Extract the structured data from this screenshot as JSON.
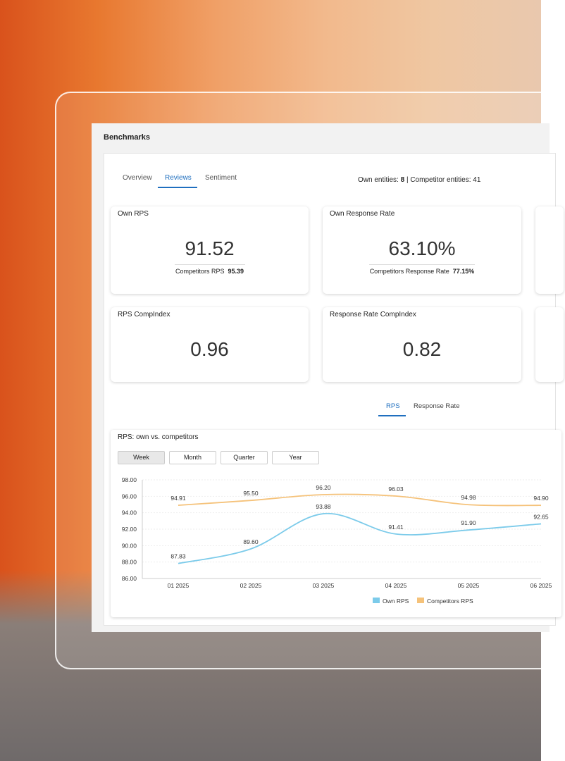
{
  "header": {
    "title": "Benchmarks"
  },
  "tabs": [
    "Overview",
    "Reviews",
    "Sentiment"
  ],
  "entities": {
    "own_label": "Own entities:",
    "own_value": "8",
    "separator": "|",
    "competitor_label": "Competitor entities:",
    "competitor_value": "41"
  },
  "cards": [
    {
      "title": "Own RPS",
      "value": "91.52",
      "sub_label": "Competitors RPS",
      "sub_value": "95.39"
    },
    {
      "title": "Own Response Rate",
      "value": "63.10%",
      "sub_label": "Competitors Response Rate",
      "sub_value": "77.15%"
    },
    {
      "title": "RPS CompIndex",
      "value": "0.96"
    },
    {
      "title": "Response Rate CompIndex",
      "value": "0.82"
    }
  ],
  "chart_tabs": [
    "RPS",
    "Response Rate"
  ],
  "chart": {
    "type": "line",
    "title": "RPS: own vs. competitors",
    "periods": [
      "Week",
      "Month",
      "Quarter",
      "Year"
    ],
    "categories": [
      "01 2025",
      "02 2025",
      "03 2025",
      "04 2025",
      "05 2025",
      "06 2025"
    ],
    "series": [
      {
        "name": "Own RPS",
        "color": "#7ccbea",
        "values": [
          87.83,
          89.6,
          93.88,
          91.41,
          91.9,
          92.65
        ],
        "value_labels": [
          "87.83",
          "89.60",
          "93.88",
          "91.41",
          "91.90",
          "92.65"
        ]
      },
      {
        "name": "Competitors RPS",
        "color": "#f5c27a",
        "values": [
          94.91,
          95.5,
          96.2,
          96.03,
          94.98,
          94.9
        ],
        "value_labels": [
          "94.91",
          "95.50",
          "96.20",
          "96.03",
          "94.98",
          "94.90"
        ]
      }
    ],
    "ylim": [
      86,
      98
    ],
    "yticks": [
      {
        "value": 86,
        "label": "86.00"
      },
      {
        "value": 88,
        "label": "88.00"
      },
      {
        "value": 90,
        "label": "90.00"
      },
      {
        "value": 92,
        "label": "92.00"
      },
      {
        "value": 94,
        "label": "94.00"
      },
      {
        "value": 96,
        "label": "96.00"
      },
      {
        "value": 98,
        "label": "98.00"
      }
    ],
    "grid": true
  }
}
